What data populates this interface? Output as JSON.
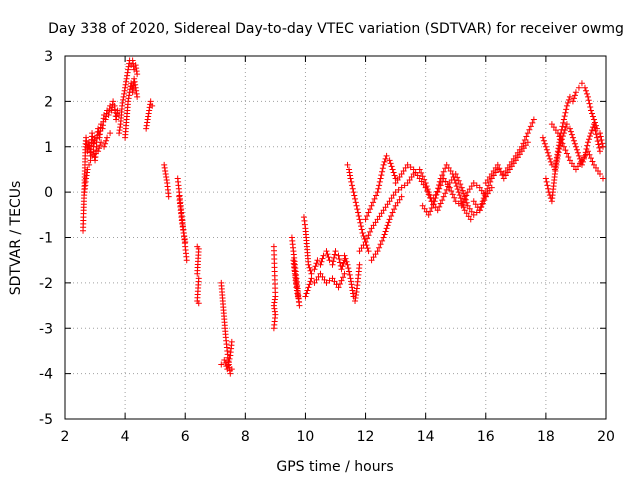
{
  "chart_data": {
    "type": "scatter",
    "title": "Day 338 of 2020, Sidereal Day-to-day VTEC variation (SDTVAR) for receiver owmg",
    "xlabel": "GPS time / hours",
    "ylabel": "SDTVAR / TECUs",
    "xlim": [
      2,
      20
    ],
    "ylim": [
      -5,
      3
    ],
    "xticks": [
      2,
      4,
      6,
      8,
      10,
      12,
      14,
      16,
      18,
      20
    ],
    "yticks": [
      -5,
      -4,
      -3,
      -2,
      -1,
      0,
      1,
      2,
      3
    ],
    "grid": true,
    "marker": "plus",
    "color": "#ff0000",
    "series": [
      {
        "name": "seg1",
        "x": [
          2.6,
          2.62,
          2.65,
          2.68,
          2.7,
          2.75,
          2.8,
          2.85,
          2.9,
          2.95,
          3.0,
          3.05,
          3.1,
          3.15,
          3.2,
          3.25,
          3.3,
          3.35,
          3.4,
          3.45,
          3.5,
          3.55,
          3.6,
          3.65,
          3.7,
          3.75,
          3.8
        ],
        "y": [
          -0.85,
          -0.4,
          0.2,
          1.0,
          1.2,
          0.9,
          1.1,
          0.8,
          1.3,
          1.0,
          1.2,
          1.1,
          1.4,
          1.2,
          1.5,
          1.4,
          1.7,
          1.6,
          1.8,
          1.7,
          1.9,
          1.8,
          2.0,
          1.9,
          1.6,
          1.8,
          1.7
        ]
      },
      {
        "name": "seg2",
        "x": [
          2.65,
          2.7,
          2.75,
          2.8,
          2.85,
          2.9,
          2.95,
          3.0,
          3.05,
          3.1,
          3.2,
          3.3,
          3.4,
          3.5
        ],
        "y": [
          0.0,
          0.3,
          0.5,
          0.6,
          0.7,
          0.8,
          0.9,
          0.7,
          1.0,
          0.9,
          1.1,
          1.0,
          1.2,
          1.3
        ]
      },
      {
        "name": "seg3",
        "x": [
          3.8,
          3.85,
          3.9,
          3.95,
          4.0,
          4.05,
          4.1,
          4.15,
          4.2,
          4.25,
          4.3,
          4.35,
          4.4
        ],
        "y": [
          1.3,
          1.5,
          1.9,
          2.1,
          2.3,
          2.5,
          2.7,
          2.9,
          2.8,
          2.9,
          2.7,
          2.8,
          2.6
        ]
      },
      {
        "name": "seg4",
        "x": [
          4.0,
          4.05,
          4.1,
          4.15,
          4.2,
          4.25,
          4.3,
          4.35,
          4.4
        ],
        "y": [
          1.2,
          1.6,
          2.0,
          2.2,
          2.4,
          2.2,
          2.5,
          2.3,
          2.1
        ]
      },
      {
        "name": "seg5",
        "x": [
          4.7,
          4.75,
          4.8,
          4.85,
          4.9
        ],
        "y": [
          1.4,
          1.6,
          1.8,
          2.0,
          1.9
        ]
      },
      {
        "name": "seg6",
        "x": [
          5.3,
          5.35,
          5.4,
          5.45
        ],
        "y": [
          0.6,
          0.4,
          0.2,
          -0.1
        ]
      },
      {
        "name": "seg7",
        "x": [
          5.75,
          5.8,
          5.85,
          5.9,
          5.95,
          6.0,
          6.05
        ],
        "y": [
          0.3,
          0.0,
          -0.3,
          -0.6,
          -0.9,
          -1.2,
          -1.5
        ]
      },
      {
        "name": "seg8",
        "x": [
          5.8,
          5.85,
          5.9,
          5.95,
          6.0
        ],
        "y": [
          -0.1,
          -0.4,
          -0.7,
          -0.9,
          -1.1
        ]
      },
      {
        "name": "seg9",
        "x": [
          6.4,
          6.45,
          6.4,
          6.45,
          6.4,
          6.45
        ],
        "y": [
          -1.2,
          -1.25,
          -1.8,
          -1.9,
          -2.4,
          -2.45
        ]
      },
      {
        "name": "seg10",
        "x": [
          7.2,
          7.25,
          7.3,
          7.35,
          7.4,
          7.45,
          7.5,
          7.55
        ],
        "y": [
          -2.0,
          -2.4,
          -2.8,
          -3.2,
          -3.5,
          -3.8,
          -4.0,
          -3.9
        ]
      },
      {
        "name": "seg11",
        "x": [
          7.2,
          7.3,
          7.4,
          7.5,
          7.55
        ],
        "y": [
          -3.8,
          -3.7,
          -3.9,
          -3.6,
          -3.3
        ]
      },
      {
        "name": "seg12",
        "x": [
          8.95,
          9.0,
          8.95,
          9.0,
          8.95
        ],
        "y": [
          -1.2,
          -2.3,
          -2.5,
          -2.7,
          -3.0
        ]
      },
      {
        "name": "seg13",
        "x": [
          9.55,
          9.6,
          9.65,
          9.7,
          9.75,
          9.8,
          9.6,
          9.65,
          9.7,
          9.75
        ],
        "y": [
          -1.0,
          -1.3,
          -1.6,
          -1.9,
          -2.2,
          -2.5,
          -1.5,
          -1.8,
          -2.1,
          -2.3
        ]
      },
      {
        "name": "seg14",
        "x": [
          9.95,
          10.0,
          10.05,
          10.1,
          10.2,
          10.3,
          10.4,
          10.5,
          10.6,
          10.7,
          10.8,
          10.9,
          11.0,
          11.1,
          11.2,
          11.3
        ],
        "y": [
          -0.55,
          -0.8,
          -1.2,
          -1.6,
          -1.8,
          -1.7,
          -1.5,
          -1.6,
          -1.4,
          -1.3,
          -1.5,
          -1.6,
          -1.3,
          -1.4,
          -1.7,
          -1.5
        ]
      },
      {
        "name": "seg15",
        "x": [
          10.0,
          10.1,
          10.2,
          10.3,
          10.5,
          10.7,
          10.9,
          11.1,
          11.3
        ],
        "y": [
          -2.3,
          -2.1,
          -1.9,
          -2.0,
          -1.8,
          -2.0,
          -1.9,
          -2.1,
          -1.8
        ]
      },
      {
        "name": "seg16",
        "x": [
          11.3,
          11.4,
          11.5,
          11.55,
          11.6,
          11.65,
          11.7,
          11.75,
          11.8
        ],
        "y": [
          -1.4,
          -1.6,
          -1.9,
          -2.1,
          -2.3,
          -2.4,
          -2.2,
          -1.9,
          -1.6
        ]
      },
      {
        "name": "seg17",
        "x": [
          11.4,
          11.45,
          11.5,
          11.6,
          11.7,
          11.8,
          11.9,
          12.0,
          12.1
        ],
        "y": [
          0.6,
          0.5,
          0.3,
          0.0,
          -0.3,
          -0.6,
          -0.9,
          -1.1,
          -1.3
        ]
      },
      {
        "name": "seg18",
        "x": [
          11.8,
          12.0,
          12.2,
          12.4,
          12.6,
          12.8,
          13.0,
          13.2,
          13.4,
          13.6
        ],
        "y": [
          -1.3,
          -1.1,
          -0.8,
          -0.6,
          -0.4,
          -0.2,
          0.0,
          0.1,
          0.2,
          0.4
        ]
      },
      {
        "name": "seg19",
        "x": [
          12.0,
          12.2,
          12.4,
          12.5,
          12.6,
          12.7,
          12.8,
          12.9,
          13.0
        ],
        "y": [
          -0.6,
          -0.3,
          0.0,
          0.3,
          0.6,
          0.8,
          0.7,
          0.5,
          0.3
        ]
      },
      {
        "name": "seg20",
        "x": [
          12.2,
          12.4,
          12.6,
          12.8,
          13.0,
          13.2
        ],
        "y": [
          -1.5,
          -1.3,
          -1.0,
          -0.6,
          -0.3,
          -0.1
        ]
      },
      {
        "name": "seg21",
        "x": [
          13.0,
          13.2,
          13.4,
          13.6,
          13.8,
          14.0,
          14.2,
          14.4,
          14.6,
          14.8,
          15.0,
          15.2,
          15.4,
          15.6,
          15.8,
          16.0
        ],
        "y": [
          0.2,
          0.4,
          0.6,
          0.5,
          0.3,
          0.1,
          -0.2,
          0.0,
          0.3,
          0.1,
          -0.2,
          -0.3,
          0.0,
          0.2,
          0.1,
          -0.1
        ]
      },
      {
        "name": "seg22",
        "x": [
          13.8,
          14.0,
          14.2,
          14.4,
          14.6,
          14.8,
          15.0,
          15.2,
          15.4,
          15.6,
          15.8,
          16.0,
          16.2
        ],
        "y": [
          0.5,
          0.2,
          -0.2,
          -0.4,
          -0.1,
          0.2,
          0.4,
          0.1,
          -0.3,
          -0.5,
          -0.4,
          -0.1,
          0.1
        ]
      },
      {
        "name": "seg23",
        "x": [
          13.9,
          14.1,
          14.3,
          14.5,
          14.7,
          14.9,
          15.1,
          15.3,
          15.5
        ],
        "y": [
          -0.3,
          -0.5,
          -0.2,
          0.3,
          0.6,
          0.4,
          0.0,
          -0.4,
          -0.6
        ]
      },
      {
        "name": "seg24",
        "x": [
          15.6,
          15.8,
          16.0,
          16.2,
          16.4,
          16.6,
          16.8,
          17.0,
          17.2,
          17.4,
          17.6
        ],
        "y": [
          -0.2,
          -0.4,
          0.0,
          0.3,
          0.5,
          0.4,
          0.6,
          0.8,
          1.0,
          1.3,
          1.6
        ]
      },
      {
        "name": "seg25",
        "x": [
          16.0,
          16.2,
          16.4,
          16.6,
          16.8,
          17.0,
          17.2,
          17.4
        ],
        "y": [
          0.2,
          0.4,
          0.6,
          0.3,
          0.5,
          0.7,
          0.9,
          1.1
        ]
      },
      {
        "name": "seg26",
        "x": [
          17.9,
          18.0,
          18.1,
          18.2,
          18.3,
          18.4,
          18.5,
          18.6,
          18.7,
          18.8,
          18.9,
          19.0,
          19.1,
          19.2,
          19.3,
          19.4,
          19.5,
          19.6,
          19.7,
          19.8,
          19.9
        ],
        "y": [
          1.2,
          1.0,
          0.8,
          0.6,
          0.5,
          0.9,
          1.3,
          1.6,
          1.9,
          2.1,
          2.0,
          2.2,
          2.3,
          2.4,
          2.3,
          2.1,
          1.8,
          1.6,
          1.4,
          1.3,
          1.0
        ]
      },
      {
        "name": "seg27",
        "x": [
          18.0,
          18.1,
          18.2,
          18.3,
          18.4,
          18.5,
          18.6,
          18.7,
          18.8,
          18.9,
          19.0,
          19.1,
          19.2,
          19.3,
          19.4,
          19.5,
          19.6,
          19.7,
          19.8
        ],
        "y": [
          0.3,
          0.0,
          -0.2,
          0.4,
          0.8,
          1.1,
          1.3,
          1.5,
          1.4,
          1.2,
          1.0,
          0.8,
          0.6,
          0.8,
          1.1,
          1.3,
          1.5,
          1.2,
          0.9
        ]
      },
      {
        "name": "seg28",
        "x": [
          18.2,
          18.4,
          18.6,
          18.8,
          19.0,
          19.2,
          19.4,
          19.6,
          19.8,
          19.9
        ],
        "y": [
          1.5,
          1.3,
          1.0,
          0.7,
          0.5,
          0.7,
          0.9,
          0.6,
          0.4,
          0.3
        ]
      }
    ]
  }
}
